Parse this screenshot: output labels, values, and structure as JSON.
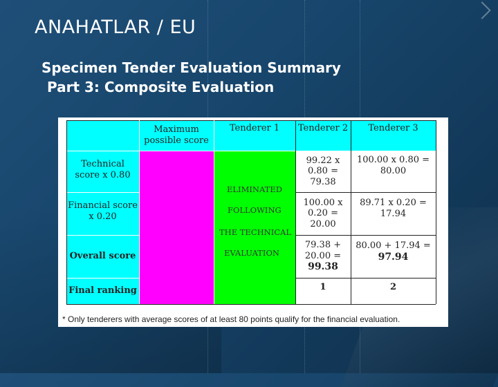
{
  "slide": {
    "title": "ANAHATLAR / EU",
    "subtitle_line1": "Specimen Tender Evaluation Summary",
    "subtitle_line2": "Part 3: Composite Evaluation"
  },
  "colors": {
    "header_cyan": "#00ffff",
    "max_score_magenta": "#ff00ff",
    "eliminated_green": "#00ff00"
  },
  "table": {
    "headers": [
      "",
      "Maximum possible score",
      "Tenderer 1",
      "Tenderer 2",
      "Tenderer 3"
    ],
    "rows": [
      {
        "label": "Technical score x 0.80",
        "tenderer2": "99.22 x 0.80 = 79.38",
        "tenderer3": "100.00 x 0.80 = 80.00"
      },
      {
        "label": "Financial score x 0.20",
        "tenderer2": "100.00 x 0.20 = 20.00",
        "tenderer3": "89.71 x 0.20 = 17.94"
      },
      {
        "label": "Overall score",
        "tenderer2_calc": "79.38 + 20.00 =",
        "tenderer2_result": "99.38",
        "tenderer3_calc": "80.00 + 17.94 =",
        "tenderer3_result": "97.94"
      },
      {
        "label": "Final ranking",
        "tenderer2": "1",
        "tenderer3": "2"
      }
    ],
    "tenderer1_note": [
      "ELIMINATED",
      "FOLLOWING",
      "THE TECHNICAL",
      "EVALUATION"
    ]
  },
  "footnote": "*   Only tenderers with average scores of at least 80 points qualify for the financial evaluation."
}
